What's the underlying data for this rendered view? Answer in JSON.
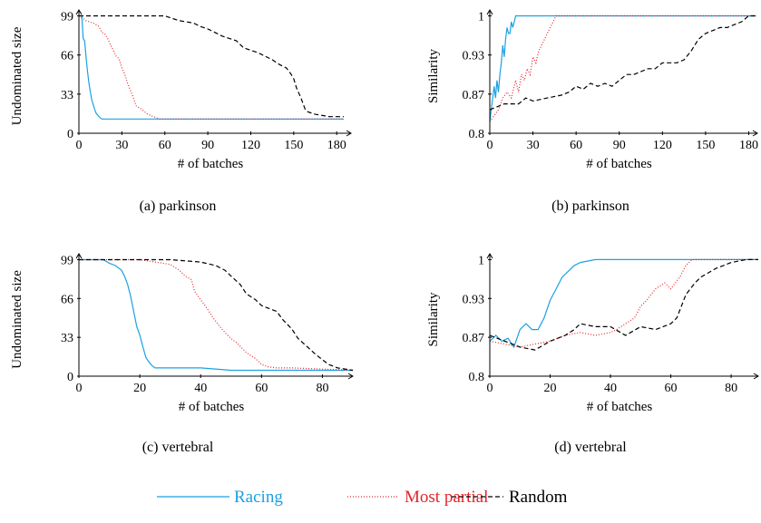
{
  "chart_data": [
    {
      "type": "line",
      "caption": "(a) parkinson",
      "xlabel": "# of batches",
      "ylabel": "Undominated size",
      "xlim": [
        0,
        190
      ],
      "ylim": [
        0,
        104
      ],
      "xticks": [
        0,
        30,
        60,
        90,
        120,
        150,
        180
      ],
      "yticks": [
        0,
        33,
        66,
        99
      ],
      "series": [
        {
          "name": "Racing",
          "color": "#1ba1e2",
          "dash": "solid",
          "x": [
            0,
            2,
            3,
            4,
            5,
            6,
            7,
            8,
            9,
            10,
            11,
            12,
            14,
            16,
            18,
            185
          ],
          "values": [
            99,
            99,
            80,
            78,
            64,
            52,
            42,
            35,
            28,
            24,
            20,
            17,
            14,
            12,
            12,
            12
          ]
        },
        {
          "name": "Most partial",
          "color": "#e3242b",
          "dash": "dotted",
          "x": [
            0,
            5,
            10,
            14,
            16,
            18,
            20,
            22,
            24,
            26,
            28,
            30,
            32,
            34,
            36,
            38,
            40,
            44,
            48,
            52,
            56,
            60,
            185
          ],
          "values": [
            99,
            95,
            93,
            90,
            85,
            84,
            80,
            75,
            70,
            65,
            63,
            55,
            50,
            42,
            36,
            30,
            23,
            20,
            16,
            14,
            12,
            12,
            12
          ]
        },
        {
          "name": "Random",
          "color": "#000000",
          "dash": "dashed",
          "x": [
            0,
            60,
            65,
            70,
            80,
            85,
            90,
            95,
            100,
            105,
            110,
            115,
            120,
            125,
            130,
            135,
            140,
            145,
            148,
            150,
            152,
            155,
            158,
            160,
            165,
            170,
            175,
            180,
            185
          ],
          "values": [
            99,
            99,
            97,
            95,
            93,
            90,
            88,
            85,
            82,
            80,
            78,
            72,
            70,
            68,
            65,
            62,
            58,
            55,
            50,
            46,
            38,
            30,
            20,
            18,
            16,
            15,
            14,
            14,
            14
          ]
        }
      ]
    },
    {
      "type": "line",
      "caption": "(b) parkinson",
      "xlabel": "# of batches",
      "ylabel": "Similarity",
      "xlim": [
        0,
        186
      ],
      "ylim": [
        0.8,
        1.01
      ],
      "xticks": [
        0,
        30,
        60,
        90,
        120,
        150,
        180
      ],
      "yticks": [
        0.8,
        {
          "value": 0.8667,
          "label": "0.87"
        },
        {
          "value": 0.9333,
          "label": "0.93"
        },
        1
      ],
      "series": [
        {
          "color": "#1ba1e2",
          "dash": "solid",
          "x": [
            0,
            1,
            2,
            3,
            4,
            5,
            6,
            7,
            8,
            9,
            10,
            11,
            12,
            13,
            14,
            15,
            16,
            17,
            18,
            19,
            20,
            185
          ],
          "values": [
            0.82,
            0.84,
            0.86,
            0.88,
            0.86,
            0.89,
            0.87,
            0.9,
            0.92,
            0.95,
            0.93,
            0.96,
            0.98,
            0.97,
            0.97,
            0.99,
            0.98,
            0.99,
            1,
            1,
            1,
            1
          ]
        },
        {
          "color": "#e3242b",
          "dash": "dotted",
          "x": [
            0,
            3,
            6,
            9,
            12,
            15,
            18,
            20,
            22,
            24,
            26,
            28,
            30,
            32,
            34,
            36,
            38,
            40,
            42,
            44,
            46,
            185
          ],
          "values": [
            0.82,
            0.83,
            0.84,
            0.86,
            0.87,
            0.86,
            0.89,
            0.87,
            0.9,
            0.89,
            0.91,
            0.9,
            0.93,
            0.92,
            0.94,
            0.95,
            0.96,
            0.97,
            0.98,
            0.99,
            1,
            1
          ]
        },
        {
          "color": "#000000",
          "dash": "dashed",
          "x": [
            0,
            10,
            20,
            25,
            30,
            40,
            50,
            55,
            60,
            65,
            70,
            75,
            80,
            85,
            90,
            95,
            100,
            105,
            110,
            115,
            120,
            125,
            130,
            135,
            140,
            145,
            150,
            155,
            160,
            165,
            170,
            175,
            180,
            185
          ],
          "values": [
            0.84,
            0.85,
            0.85,
            0.86,
            0.855,
            0.86,
            0.865,
            0.87,
            0.88,
            0.875,
            0.885,
            0.88,
            0.885,
            0.88,
            0.89,
            0.9,
            0.9,
            0.905,
            0.91,
            0.91,
            0.92,
            0.92,
            0.92,
            0.925,
            0.94,
            0.96,
            0.97,
            0.975,
            0.98,
            0.98,
            0.985,
            0.99,
            1,
            1
          ]
        }
      ]
    },
    {
      "type": "line",
      "caption": "(c) vertebral",
      "xlabel": "# of batches",
      "ylabel": "Undominated size",
      "xlim": [
        0,
        90
      ],
      "ylim": [
        0,
        104
      ],
      "xticks": [
        0,
        20,
        40,
        60,
        80
      ],
      "yticks": [
        0,
        33,
        66,
        99
      ],
      "series": [
        {
          "color": "#1ba1e2",
          "dash": "solid",
          "x": [
            0,
            8,
            10,
            12,
            14,
            15,
            16,
            17,
            18,
            19,
            20,
            21,
            22,
            23,
            24,
            25,
            30,
            35,
            40,
            50,
            60,
            70,
            80,
            90
          ],
          "values": [
            99,
            99,
            96,
            94,
            90,
            85,
            78,
            68,
            55,
            42,
            35,
            25,
            16,
            12,
            9,
            7,
            7,
            7,
            7,
            5,
            5,
            5,
            5,
            5
          ]
        },
        {
          "color": "#e3242b",
          "dash": "dotted",
          "x": [
            0,
            20,
            25,
            30,
            33,
            35,
            37,
            38,
            40,
            42,
            44,
            46,
            48,
            50,
            52,
            55,
            58,
            60,
            62,
            65,
            70,
            80,
            90
          ],
          "values": [
            99,
            99,
            97,
            95,
            90,
            85,
            82,
            72,
            65,
            58,
            50,
            43,
            37,
            32,
            28,
            20,
            15,
            10,
            8,
            7,
            7,
            6,
            5
          ]
        },
        {
          "color": "#000000",
          "dash": "dashed",
          "x": [
            0,
            30,
            40,
            45,
            48,
            50,
            53,
            55,
            58,
            60,
            62,
            65,
            67,
            70,
            72,
            75,
            78,
            80,
            82,
            85,
            90
          ],
          "values": [
            99,
            99,
            97,
            94,
            90,
            85,
            78,
            70,
            65,
            60,
            58,
            55,
            48,
            40,
            32,
            25,
            18,
            14,
            10,
            7,
            5
          ]
        }
      ]
    },
    {
      "type": "line",
      "caption": "(d) vertebral",
      "xlabel": "# of batches",
      "ylabel": "Similarity",
      "xlim": [
        0,
        89
      ],
      "ylim": [
        0.8,
        1.01
      ],
      "xticks": [
        0,
        20,
        40,
        60,
        80
      ],
      "yticks": [
        0.8,
        {
          "value": 0.8667,
          "label": "0.87"
        },
        {
          "value": 0.9333,
          "label": "0.93"
        },
        1
      ],
      "series": [
        {
          "color": "#1ba1e2",
          "dash": "solid",
          "x": [
            0,
            2,
            4,
            6,
            8,
            10,
            12,
            14,
            16,
            18,
            20,
            22,
            24,
            26,
            28,
            30,
            35,
            40,
            89
          ],
          "values": [
            0.86,
            0.87,
            0.86,
            0.865,
            0.85,
            0.88,
            0.89,
            0.88,
            0.88,
            0.9,
            0.93,
            0.95,
            0.97,
            0.98,
            0.99,
            0.995,
            1,
            1,
            1
          ]
        },
        {
          "color": "#e3242b",
          "dash": "dotted",
          "x": [
            0,
            5,
            10,
            15,
            20,
            25,
            30,
            35,
            40,
            42,
            45,
            48,
            50,
            52,
            55,
            58,
            60,
            63,
            65,
            67,
            70,
            89
          ],
          "values": [
            0.86,
            0.855,
            0.85,
            0.855,
            0.86,
            0.87,
            0.875,
            0.87,
            0.875,
            0.88,
            0.89,
            0.9,
            0.92,
            0.93,
            0.95,
            0.96,
            0.95,
            0.97,
            0.99,
            1,
            1,
            1
          ]
        },
        {
          "color": "#000000",
          "dash": "dashed",
          "x": [
            0,
            5,
            10,
            15,
            20,
            25,
            28,
            30,
            35,
            40,
            45,
            50,
            55,
            60,
            62,
            65,
            68,
            70,
            75,
            80,
            85,
            89
          ],
          "values": [
            0.87,
            0.86,
            0.85,
            0.845,
            0.86,
            0.87,
            0.88,
            0.89,
            0.885,
            0.885,
            0.87,
            0.885,
            0.88,
            0.89,
            0.9,
            0.94,
            0.96,
            0.97,
            0.985,
            0.995,
            1,
            1
          ]
        }
      ]
    }
  ]
}
